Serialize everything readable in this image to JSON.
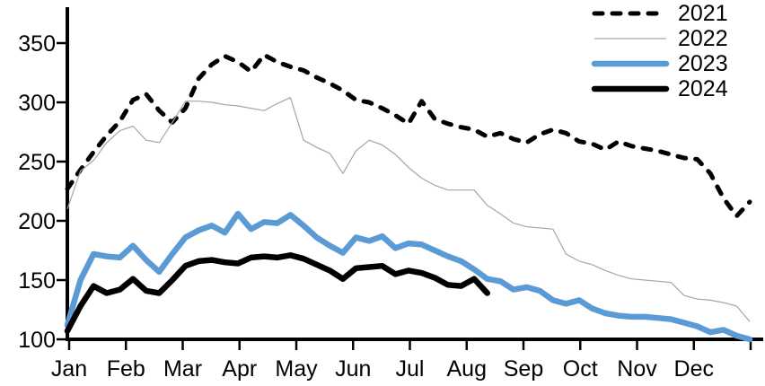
{
  "chart_data": {
    "type": "line",
    "title": "",
    "xlabel": "",
    "ylabel": "",
    "x_unit": "weekly points across one year",
    "x_tick_labels": [
      "Jan",
      "Feb",
      "Mar",
      "Apr",
      "May",
      "Jun",
      "Jul",
      "Aug",
      "Sep",
      "Oct",
      "Nov",
      "Dec"
    ],
    "y_ticks": [
      100,
      150,
      200,
      250,
      300,
      350
    ],
    "ylim": [
      100,
      357
    ],
    "grid": false,
    "legend_position": "top-right",
    "background_color": "#ffffff",
    "axis_color": "#000000",
    "series": [
      {
        "name": "2021",
        "color": "#000000",
        "style": "dashed",
        "thickness": "thick",
        "values": [
          227,
          243,
          258,
          272,
          284,
          302,
          307,
          293,
          283,
          295,
          320,
          332,
          339,
          334,
          326,
          340,
          334,
          330,
          327,
          321,
          316,
          310,
          302,
          300,
          295,
          289,
          282,
          301,
          286,
          282,
          279,
          277,
          271,
          274,
          269,
          266,
          273,
          277,
          274,
          267,
          265,
          260,
          267,
          263,
          261,
          259,
          256,
          253,
          252,
          240,
          219,
          204,
          216
        ]
      },
      {
        "name": "2022",
        "color": "#a6a6a6",
        "style": "solid",
        "thickness": "thin",
        "values": [
          210,
          242,
          251,
          266,
          276,
          280,
          268,
          266,
          283,
          301,
          301,
          300,
          298,
          297,
          295,
          293,
          299,
          304,
          268,
          262,
          257,
          240,
          259,
          268,
          264,
          256,
          245,
          236,
          230,
          226,
          226,
          226,
          213,
          206,
          198,
          195,
          194,
          193,
          172,
          166,
          163,
          158,
          154,
          151,
          150,
          149,
          148,
          137,
          134,
          133,
          131,
          128,
          115
        ]
      },
      {
        "name": "2023",
        "color": "#5b9bd5",
        "style": "solid",
        "thickness": "thick",
        "values": [
          112,
          150,
          172,
          170,
          169,
          179,
          167,
          157,
          172,
          186,
          192,
          196,
          190,
          206,
          193,
          199,
          198,
          205,
          196,
          186,
          179,
          173,
          186,
          183,
          187,
          177,
          181,
          180,
          175,
          170,
          166,
          159,
          151,
          149,
          142,
          144,
          141,
          133,
          130,
          133,
          126,
          122,
          120,
          119,
          119,
          118,
          117,
          114,
          111,
          106,
          108,
          103,
          100
        ]
      },
      {
        "name": "2024",
        "color": "#000000",
        "style": "solid",
        "thickness": "thick",
        "values": [
          107,
          128,
          145,
          139,
          142,
          151,
          141,
          139,
          150,
          162,
          166,
          167,
          165,
          164,
          169,
          170,
          169,
          171,
          168,
          163,
          158,
          151,
          160,
          161,
          162,
          155,
          158,
          156,
          152,
          146,
          145,
          151,
          139
        ]
      }
    ]
  }
}
